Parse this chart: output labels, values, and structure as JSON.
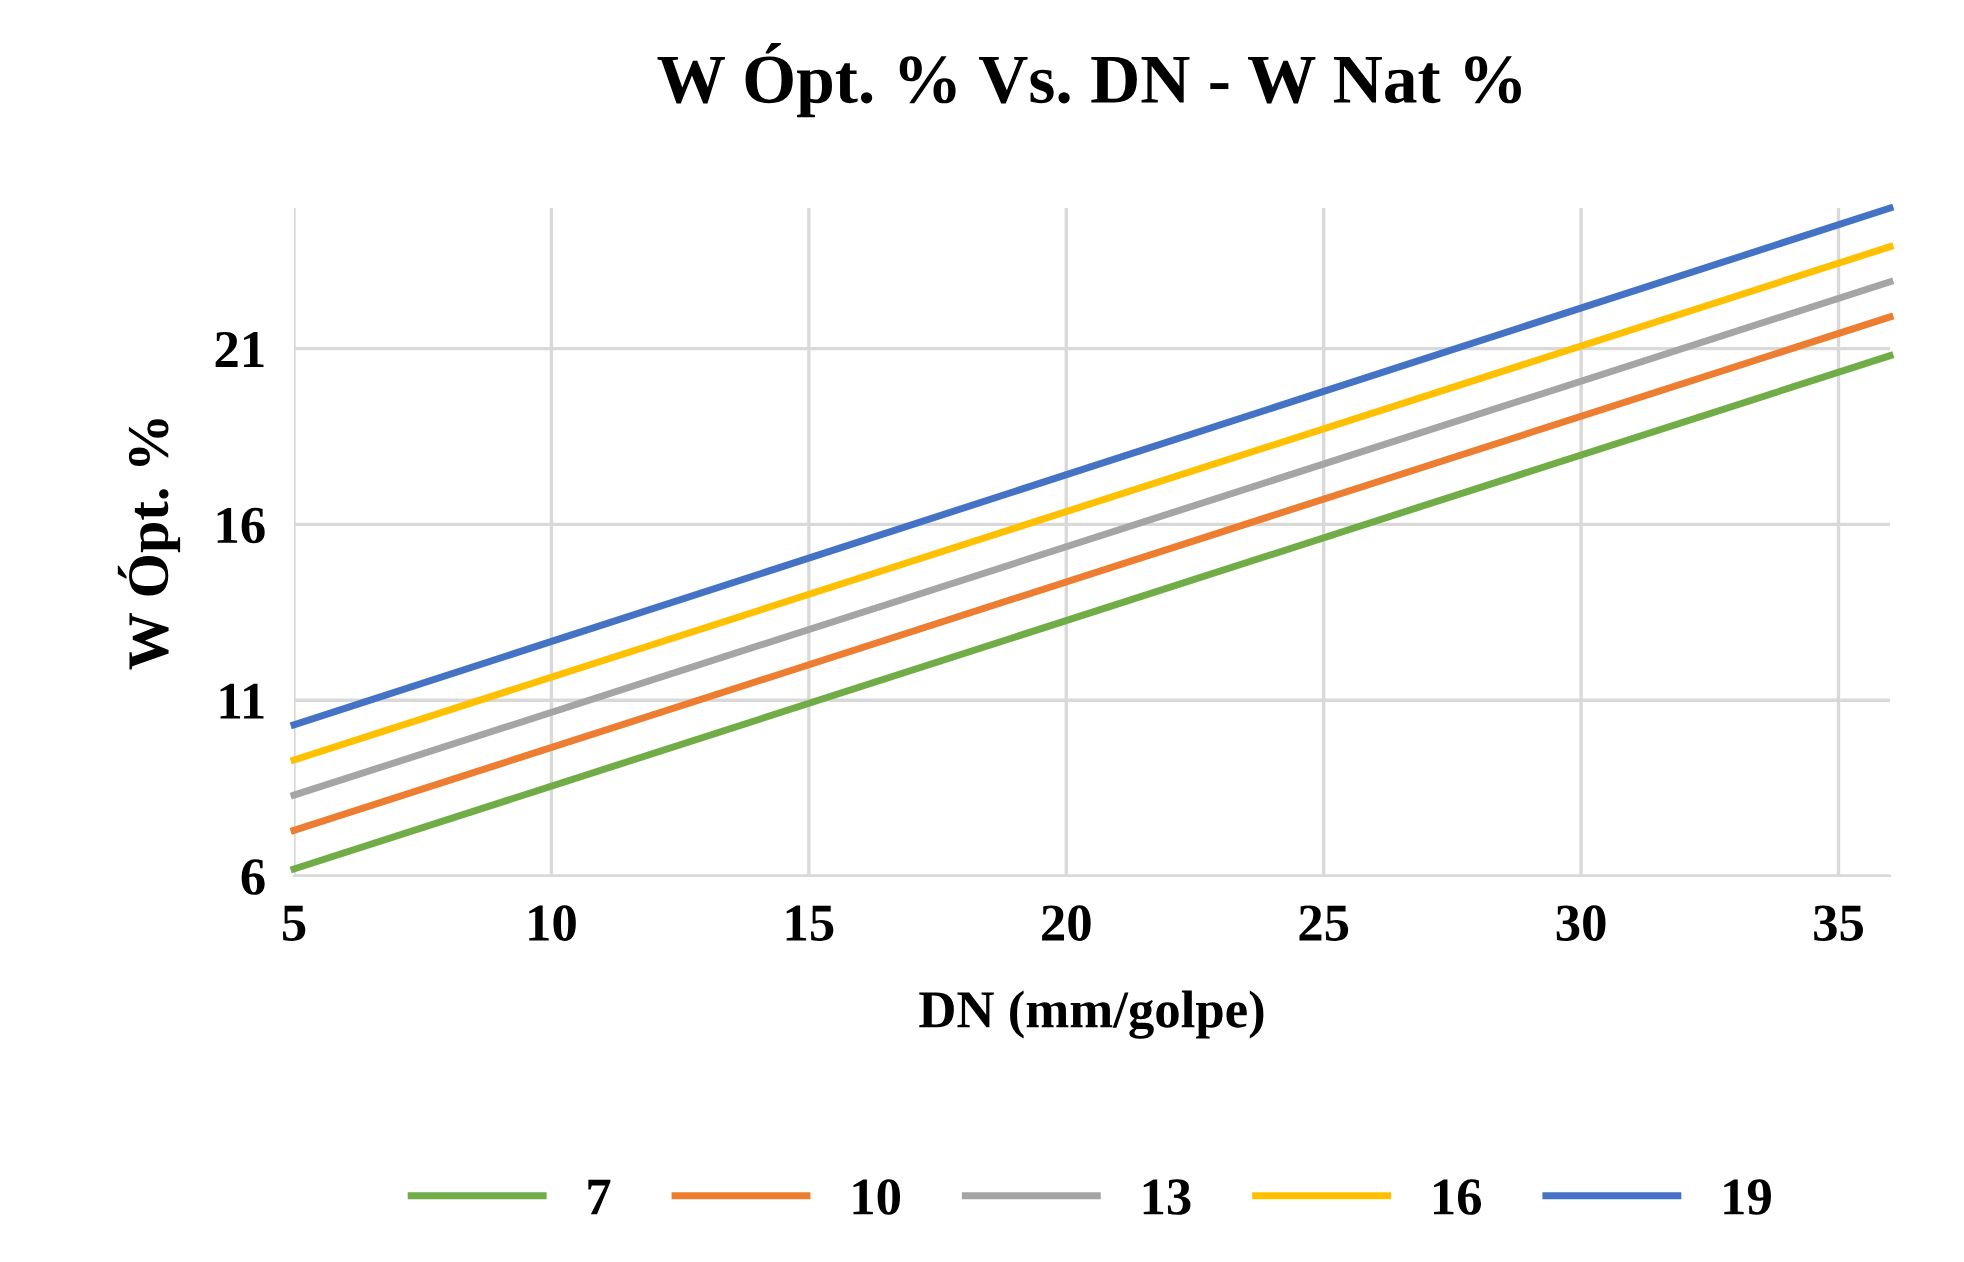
{
  "chart_data": {
    "type": "line",
    "title": "W Ópt. % Vs. DN - W Nat %",
    "xlabel": "DN (mm/golpe)",
    "ylabel": "W Ópt. %",
    "x": [
      5,
      36
    ],
    "series": [
      {
        "name": "7",
        "color": "#70ad47",
        "values": [
          6.2,
          20.8
        ]
      },
      {
        "name": "10",
        "color": "#ed7d31",
        "values": [
          7.3,
          21.9
        ]
      },
      {
        "name": "13",
        "color": "#a5a5a5",
        "values": [
          8.3,
          22.9
        ]
      },
      {
        "name": "16",
        "color": "#ffc000",
        "values": [
          9.3,
          23.9
        ]
      },
      {
        "name": "19",
        "color": "#4472c4",
        "values": [
          10.3,
          25.0
        ]
      }
    ],
    "xlim": [
      5,
      36
    ],
    "xticks": [
      5,
      10,
      15,
      20,
      25,
      30,
      35
    ],
    "ylim": [
      6,
      25
    ],
    "yticks": [
      6,
      11,
      16,
      21
    ],
    "grid": true,
    "legend": "bottom",
    "marker": "none",
    "line_style": "solid"
  }
}
